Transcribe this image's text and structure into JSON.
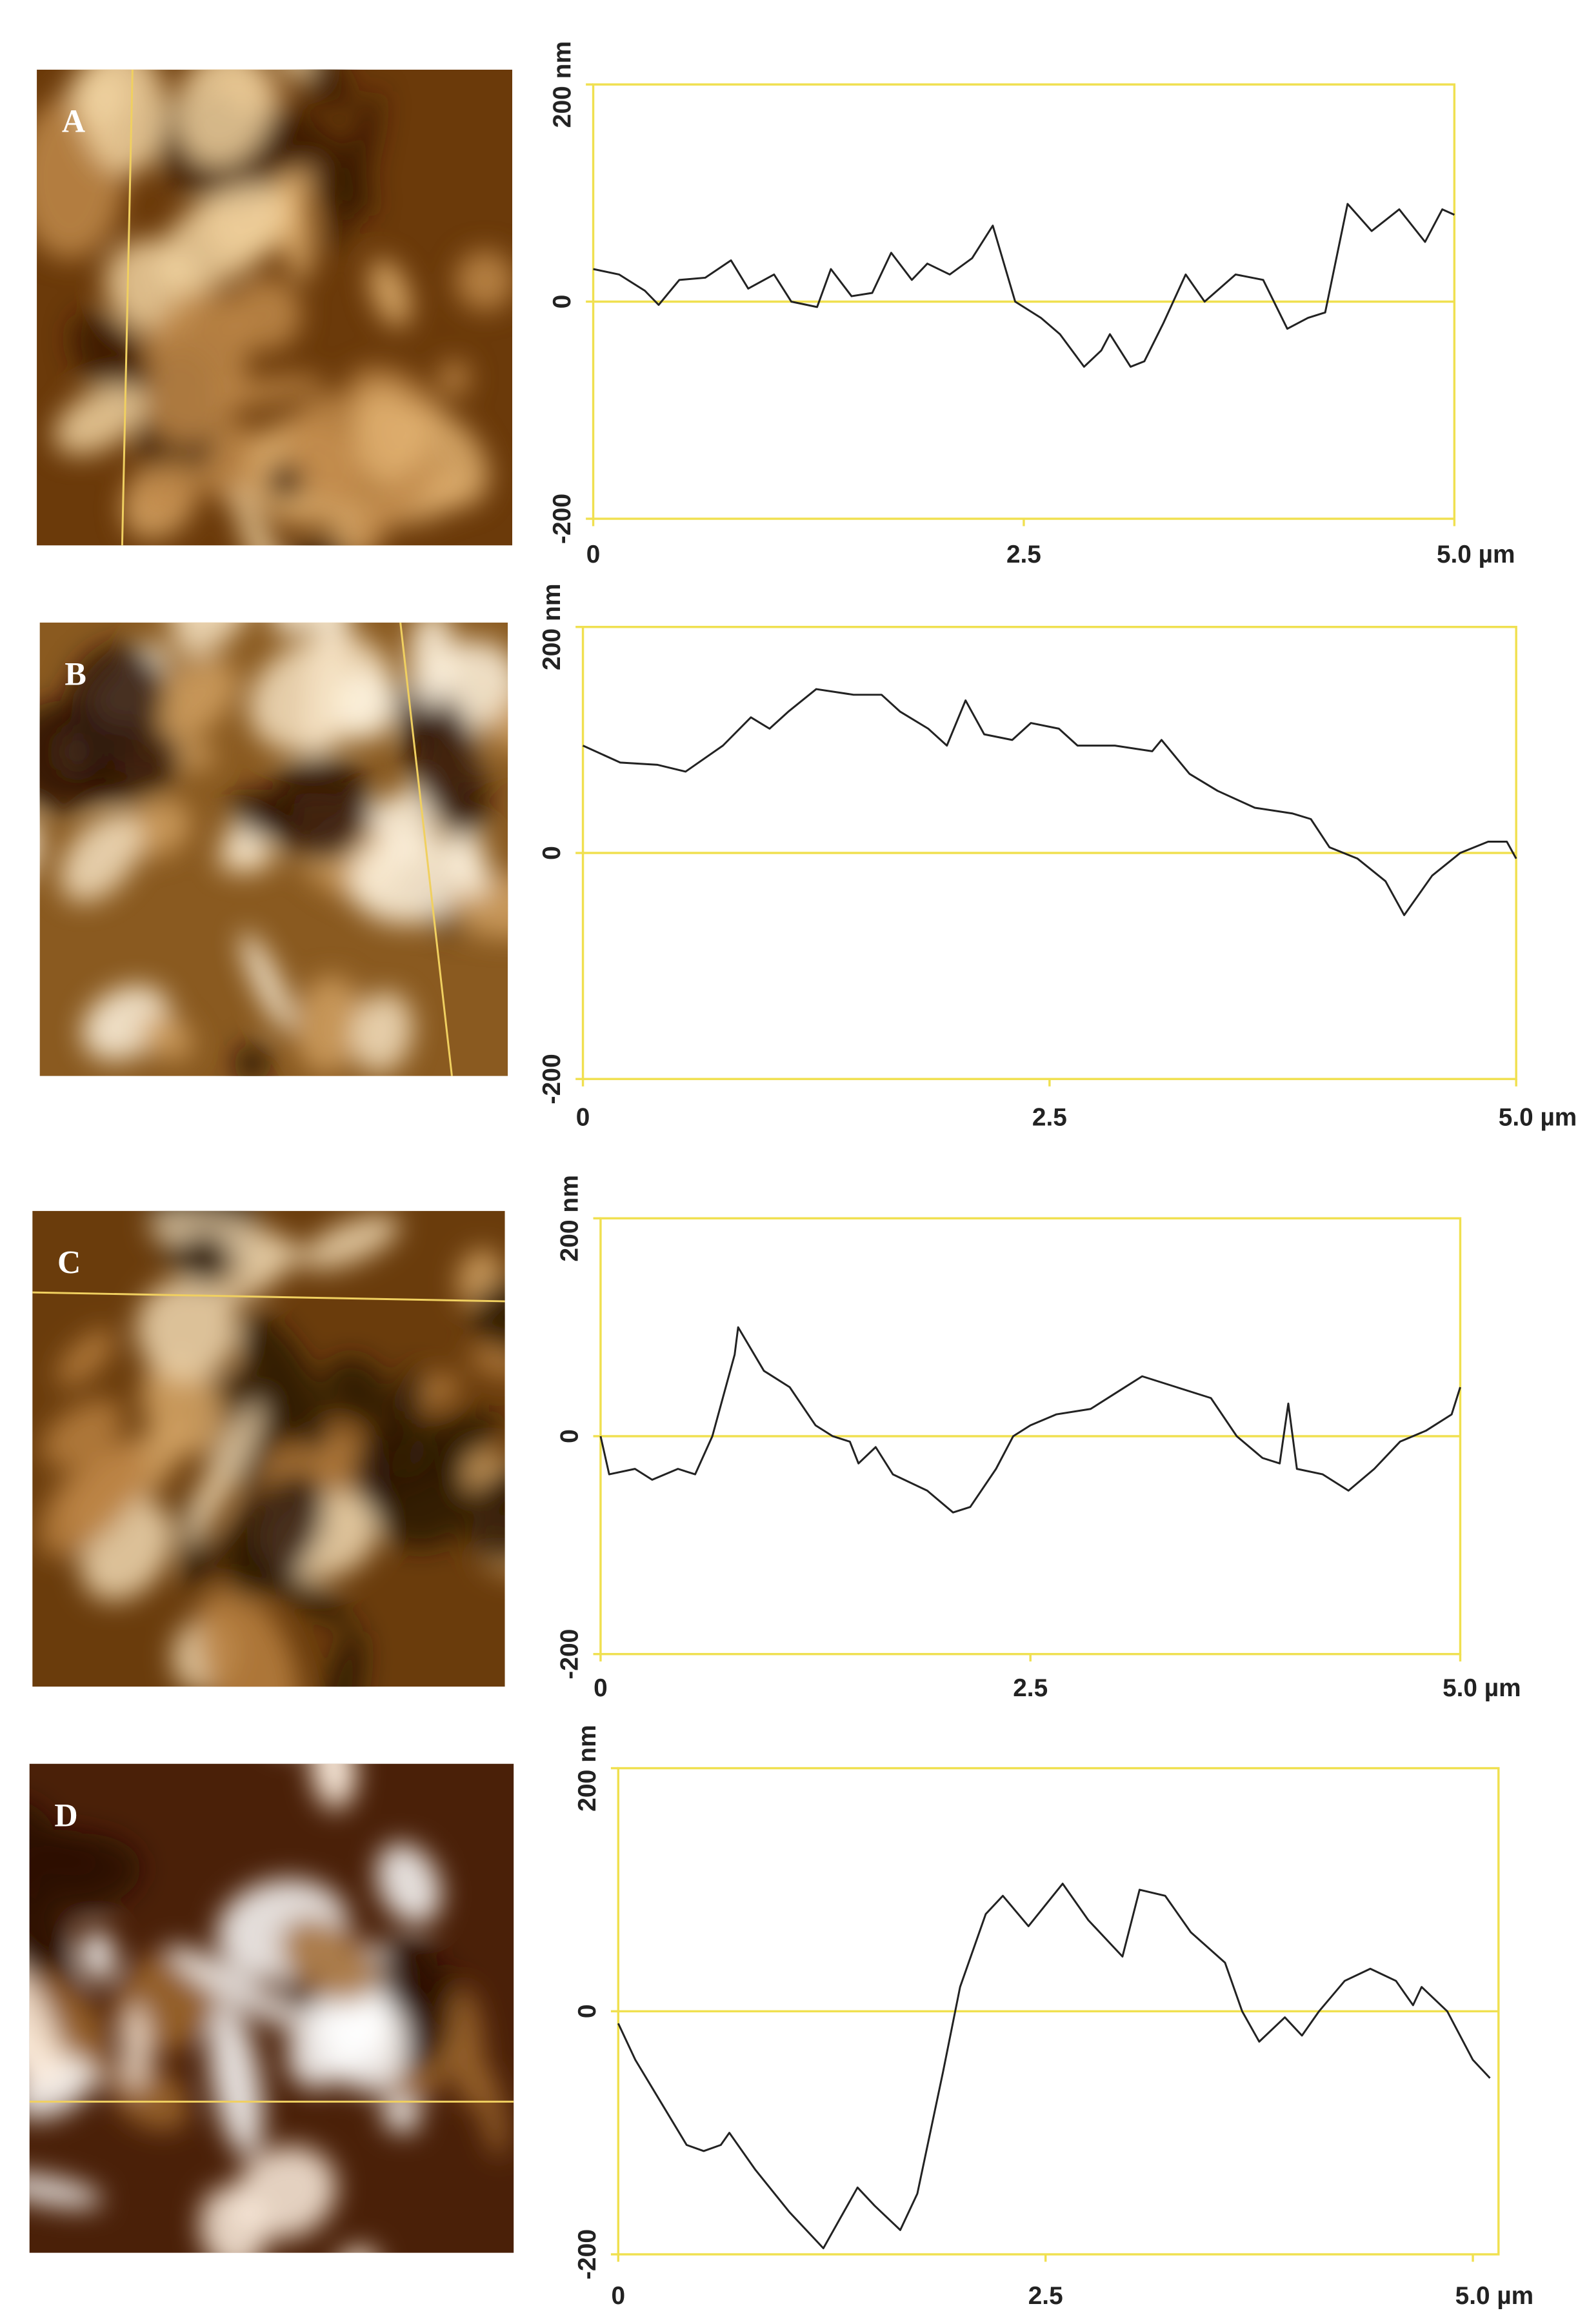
{
  "chart_data": [
    {
      "type": "line",
      "panel_label": "A",
      "color": "#222222",
      "frame_color": "#f0e050",
      "hlines": [
        0
      ],
      "xlim": [
        0,
        5
      ],
      "ylim": [
        -200,
        200
      ],
      "xticks": [
        0,
        2.5,
        {
          "value": 5,
          "label": "5.0 µm"
        }
      ],
      "yticks": [
        -200,
        0,
        {
          "value": 200,
          "label": "200 nm"
        }
      ],
      "series": [
        {
          "x": [
            0,
            0.15,
            0.3,
            0.38,
            0.5,
            0.65,
            0.8,
            0.9,
            1.05,
            1.15,
            1.3,
            1.38,
            1.5,
            1.62,
            1.73,
            1.85,
            1.94,
            2.07,
            2.2,
            2.32,
            2.45,
            2.6,
            2.71,
            2.85,
            2.95,
            3.0,
            3.12,
            3.2,
            3.31,
            3.44,
            3.55,
            3.73,
            3.89,
            4.03,
            4.15,
            4.25,
            4.38,
            4.52,
            4.6,
            4.68,
            4.83,
            4.93,
            5.0
          ],
          "values": [
            30,
            25,
            10,
            -3,
            20,
            22,
            38,
            12,
            25,
            0,
            -5,
            30,
            5,
            8,
            45,
            20,
            35,
            25,
            40,
            70,
            0,
            -15,
            -30,
            -60,
            -45,
            -30,
            -60,
            -55,
            -20,
            25,
            0,
            25,
            20,
            -25,
            -15,
            -10,
            90,
            65,
            75,
            85,
            55,
            85,
            80
          ]
        }
      ]
    },
    {
      "type": "line",
      "panel_label": "B",
      "color": "#222222",
      "frame_color": "#f0e050",
      "hlines": [
        0
      ],
      "xlim": [
        0,
        5
      ],
      "ylim": [
        -200,
        200
      ],
      "xticks": [
        0,
        2.5,
        {
          "value": 5,
          "label": "5.0 µm"
        }
      ],
      "yticks": [
        -200,
        0,
        {
          "value": 200,
          "label": "200 nm"
        }
      ],
      "series": [
        {
          "x": [
            0,
            0.2,
            0.4,
            0.55,
            0.75,
            0.9,
            1.0,
            1.1,
            1.25,
            1.45,
            1.6,
            1.7,
            1.85,
            1.95,
            2.05,
            2.15,
            2.3,
            2.4,
            2.55,
            2.65,
            2.85,
            3.05,
            3.1,
            3.25,
            3.4,
            3.6,
            3.8,
            3.9,
            4.0,
            4.15,
            4.3,
            4.4,
            4.55,
            4.7,
            4.85,
            4.95,
            5.0
          ],
          "values": [
            95,
            80,
            78,
            72,
            95,
            120,
            110,
            125,
            145,
            140,
            140,
            125,
            110,
            95,
            135,
            105,
            100,
            115,
            110,
            95,
            95,
            90,
            100,
            70,
            55,
            40,
            35,
            30,
            5,
            -5,
            -25,
            -55,
            -20,
            0,
            10,
            10,
            -5
          ]
        }
      ]
    },
    {
      "type": "line",
      "panel_label": "C",
      "color": "#222222",
      "frame_color": "#f0e050",
      "hlines": [
        0
      ],
      "xlim": [
        0,
        5
      ],
      "ylim": [
        -200,
        200
      ],
      "xticks": [
        0,
        2.5,
        {
          "value": 5,
          "label": "5.0 µm"
        }
      ],
      "yticks": [
        -200,
        0,
        {
          "value": 200,
          "label": "200 nm"
        }
      ],
      "series": [
        {
          "x": [
            0,
            0.05,
            0.2,
            0.3,
            0.45,
            0.55,
            0.65,
            0.78,
            0.8,
            0.95,
            1.1,
            1.25,
            1.35,
            1.45,
            1.5,
            1.6,
            1.7,
            1.9,
            2.05,
            2.15,
            2.3,
            2.4,
            2.5,
            2.65,
            2.85,
            3.0,
            3.15,
            3.35,
            3.55,
            3.7,
            3.85,
            3.95,
            4.0,
            4.05,
            4.2,
            4.35,
            4.5,
            4.65,
            4.8,
            4.95,
            5.0
          ],
          "values": [
            0,
            -35,
            -30,
            -40,
            -30,
            -35,
            0,
            75,
            100,
            60,
            45,
            10,
            0,
            -5,
            -25,
            -10,
            -35,
            -50,
            -70,
            -65,
            -30,
            0,
            10,
            20,
            25,
            40,
            55,
            45,
            35,
            0,
            -20,
            -25,
            30,
            -30,
            -35,
            -50,
            -30,
            -5,
            5,
            20,
            45
          ]
        }
      ]
    },
    {
      "type": "line",
      "panel_label": "D",
      "color": "#222222",
      "frame_color": "#f0e050",
      "hlines": [
        0
      ],
      "xlim": [
        0,
        5.15
      ],
      "ylim": [
        -200,
        200
      ],
      "xticks": [
        0,
        2.5,
        {
          "value": 5,
          "label": "5.0 µm"
        }
      ],
      "yticks": [
        -200,
        0,
        {
          "value": 200,
          "label": "200 nm"
        }
      ],
      "series": [
        {
          "x": [
            0,
            0.1,
            0.25,
            0.4,
            0.5,
            0.6,
            0.65,
            0.8,
            1.0,
            1.2,
            1.3,
            1.4,
            1.5,
            1.65,
            1.75,
            1.9,
            2.0,
            2.15,
            2.25,
            2.4,
            2.6,
            2.75,
            2.85,
            2.95,
            3.05,
            3.2,
            3.35,
            3.55,
            3.65,
            3.75,
            3.9,
            4.0,
            4.1,
            4.25,
            4.4,
            4.55,
            4.65,
            4.7,
            4.85,
            5.0,
            5.1
          ],
          "values": [
            -10,
            -40,
            -75,
            -110,
            -115,
            -110,
            -100,
            -130,
            -165,
            -195,
            -170,
            -145,
            -160,
            -180,
            -150,
            -50,
            20,
            80,
            95,
            70,
            105,
            75,
            60,
            45,
            100,
            95,
            65,
            40,
            0,
            -25,
            -5,
            -20,
            0,
            25,
            35,
            25,
            5,
            20,
            0,
            -40,
            -55
          ]
        }
      ]
    }
  ]
}
